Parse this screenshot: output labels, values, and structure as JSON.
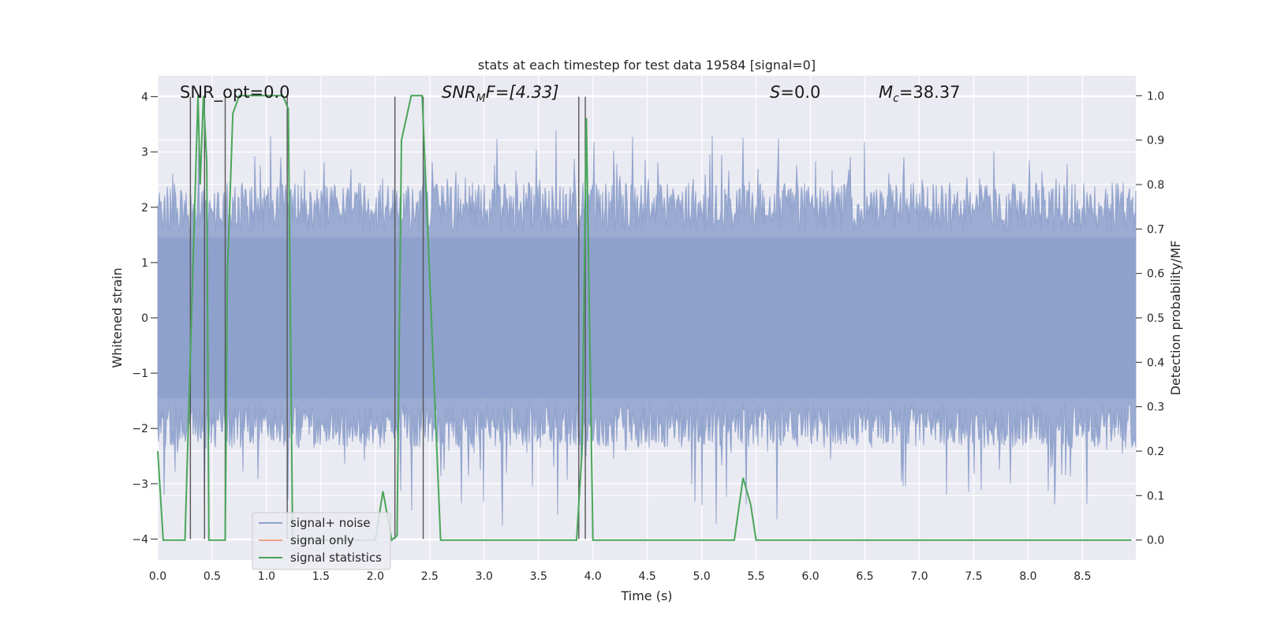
{
  "chart_data": {
    "type": "line",
    "title": "stats at each timestep for test data 19584 [signal=0]",
    "xlabel": "Time (s)",
    "ylabel_left": "Whitened strain",
    "ylabel_right": "Detection probability/MF",
    "xlim": [
      0.0,
      8.99
    ],
    "ylim_left": [
      -4.38,
      4.38
    ],
    "ylim_right": [
      -0.045,
      1.045
    ],
    "x_ticks": [
      "0.0",
      "0.5",
      "1.0",
      "1.5",
      "2.0",
      "2.5",
      "3.0",
      "3.5",
      "4.0",
      "4.5",
      "5.0",
      "5.5",
      "6.0",
      "6.5",
      "7.0",
      "7.5",
      "8.0",
      "8.5"
    ],
    "y_ticks_left": [
      "4",
      "3",
      "2",
      "1",
      "0",
      "−1",
      "−2",
      "−3",
      "−4"
    ],
    "y_ticks_right": [
      "1.0",
      "0.9",
      "0.8",
      "0.7",
      "0.6",
      "0.5",
      "0.4",
      "0.3",
      "0.2",
      "0.1",
      "0.0"
    ],
    "grid": true,
    "annotations": {
      "snr_opt": "SNR_opt=0.0",
      "snr_mf_main": "SNR",
      "snr_mf_sub": "M",
      "snr_mf_rest": "F=[4.33]",
      "s_main": "S",
      "s_rest": "=0.0",
      "mc_main": "M",
      "mc_sub": "c",
      "mc_rest": "=38.37"
    },
    "legend": {
      "placement": "lower-left",
      "entries": [
        {
          "label": "signal+ noise",
          "color": "#8da0cb"
        },
        {
          "label": "signal only",
          "color": "#e8a487"
        },
        {
          "label": "signal statistics",
          "color": "#4aa55a"
        }
      ]
    },
    "series": [
      {
        "name": "signal+ noise",
        "axis": "left",
        "color": "#8da0cb",
        "description_style": "dense noise envelope",
        "x_range": [
          0.0,
          8.99
        ],
        "typical_peak": 2.3,
        "max_peak": 3.8,
        "min_trough": -4.0
      },
      {
        "name": "signal statistics",
        "axis": "right",
        "color": "#4aa55a",
        "x": [
          0.0,
          0.05,
          0.25,
          0.37,
          0.39,
          0.42,
          0.45,
          0.47,
          0.62,
          0.64,
          0.69,
          0.75,
          1.15,
          1.2,
          1.24,
          1.3,
          2.0,
          2.07,
          2.15,
          2.2,
          2.24,
          2.33,
          2.43,
          2.6,
          2.7,
          3.85,
          3.9,
          3.94,
          4.0,
          4.1,
          5.0,
          5.1,
          5.3,
          5.38,
          5.45,
          5.5,
          8.95
        ],
        "y": [
          0.2,
          0.0,
          0.0,
          1.0,
          0.8,
          1.0,
          0.85,
          0.0,
          0.0,
          0.6,
          0.96,
          1.0,
          1.0,
          0.97,
          0.0,
          0.0,
          0.0,
          0.11,
          0.0,
          0.01,
          0.9,
          1.0,
          1.0,
          0.0,
          0.0,
          0.0,
          0.2,
          0.95,
          0.0,
          0.0,
          0.0,
          0.0,
          0.0,
          0.14,
          0.08,
          0.0,
          0.0
        ]
      }
    ],
    "vertical_markers_x": [
      0.3,
      0.43,
      0.62,
      1.19,
      2.18,
      2.44,
      3.87,
      3.93
    ]
  }
}
